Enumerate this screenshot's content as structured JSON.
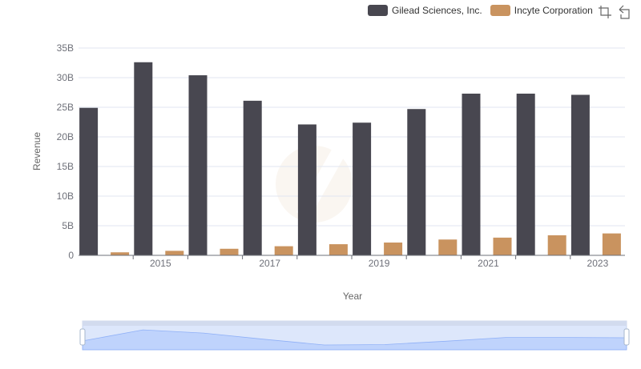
{
  "chart_data": {
    "type": "bar",
    "categories": [
      "2014",
      "2015",
      "2016",
      "2017",
      "2018",
      "2019",
      "2020",
      "2021",
      "2022",
      "2023"
    ],
    "x_tick_labels": [
      "2015",
      "2017",
      "2019",
      "2021",
      "2023"
    ],
    "series": [
      {
        "name": "Gilead Sciences, Inc.",
        "color": "#484750",
        "values": [
          24.9,
          32.6,
          30.4,
          26.1,
          22.1,
          22.4,
          24.7,
          27.3,
          27.3,
          27.1
        ]
      },
      {
        "name": "Incyte Corporation",
        "color": "#c9935f",
        "values": [
          0.51,
          0.76,
          1.11,
          1.54,
          1.88,
          2.16,
          2.67,
          2.99,
          3.39,
          3.7
        ]
      }
    ],
    "xlabel": "Year",
    "ylabel": "Revenue",
    "ylim": [
      0,
      35
    ],
    "y_ticks": [
      0,
      5,
      10,
      15,
      20,
      25,
      30,
      35
    ],
    "y_tick_labels": [
      "0",
      "5B",
      "10B",
      "15B",
      "20B",
      "25B",
      "30B",
      "35B"
    ],
    "grid": true,
    "legend_position": "top-right"
  }
}
